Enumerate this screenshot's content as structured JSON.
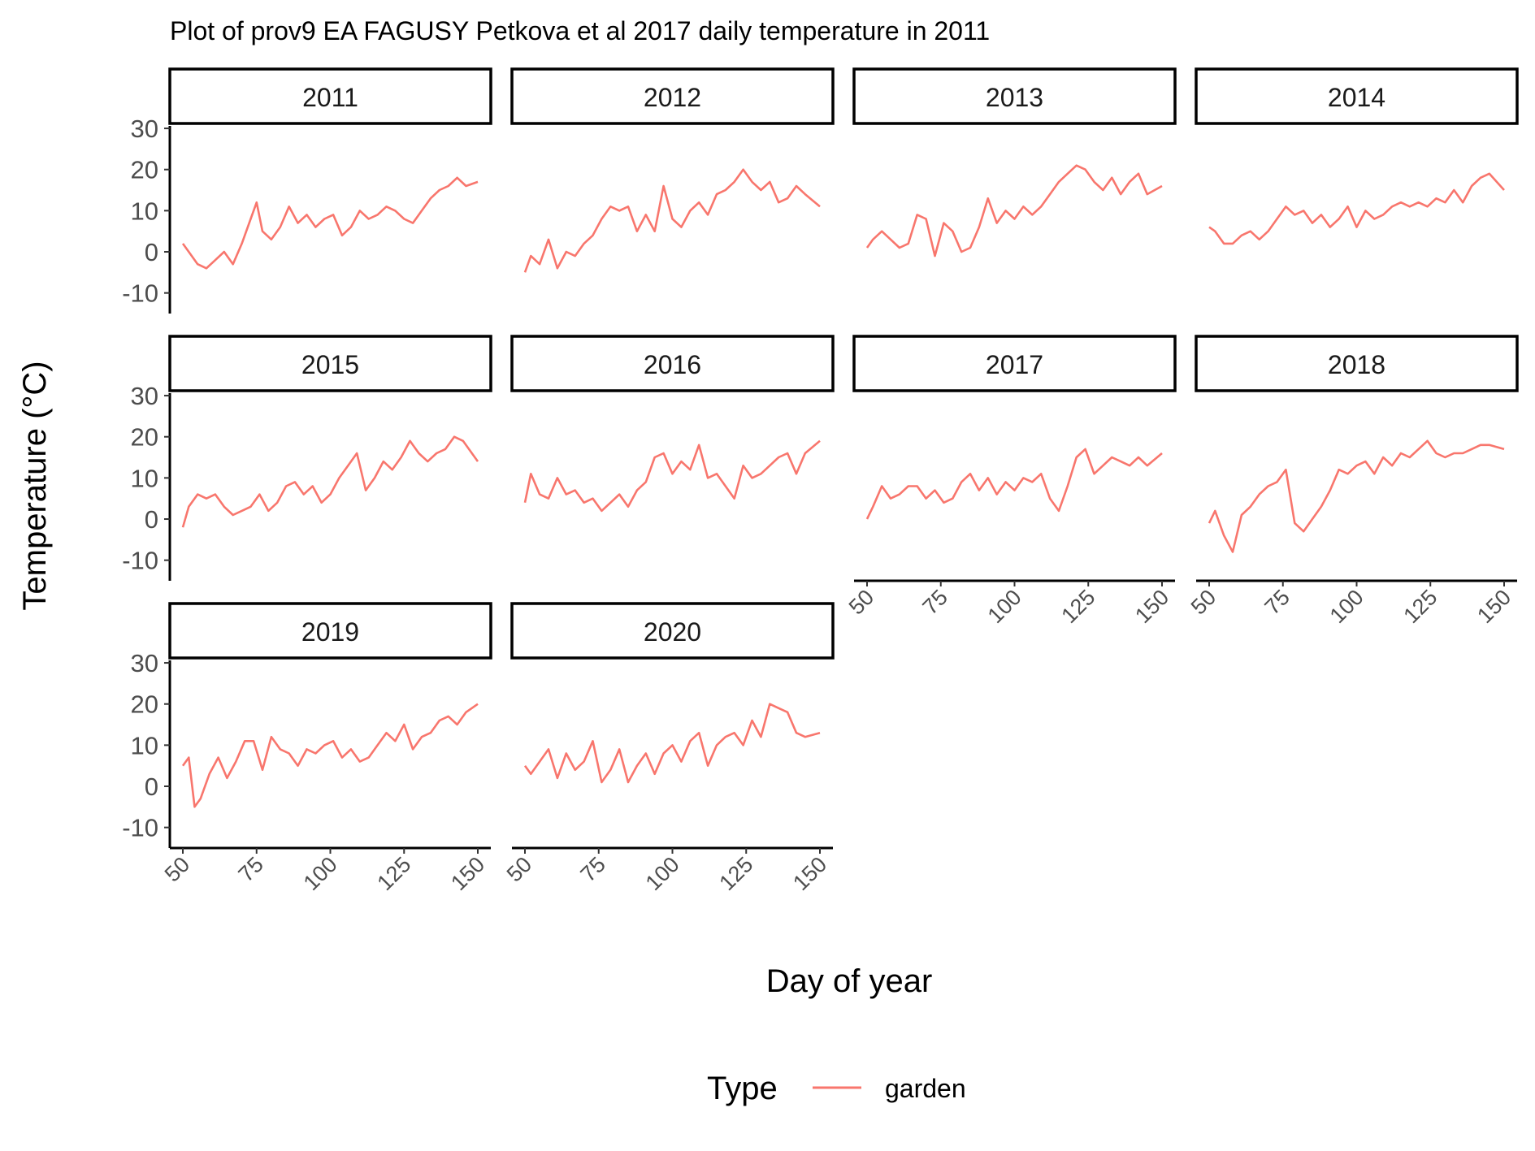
{
  "chart_data": {
    "type": "line",
    "title": "Plot of prov9 EA FAGUSY Petkova et al 2017 daily temperature in 2011",
    "xlabel": "Day of year",
    "ylabel": "Temperature (°C)",
    "xlim": [
      50,
      150
    ],
    "ylim": [
      -15,
      31
    ],
    "x_ticks": [
      "50",
      "75",
      "100",
      "125",
      "150"
    ],
    "y_ticks": [
      "30",
      "20",
      "10",
      "0",
      "-10"
    ],
    "line_color": "#F8766D",
    "legend": {
      "title": "Type",
      "entries": [
        "garden"
      ],
      "position": "bottom"
    },
    "grid": false,
    "panels": [
      {
        "label": "2011",
        "x": [
          50,
          52,
          55,
          58,
          61,
          64,
          67,
          70,
          73,
          75,
          77,
          80,
          83,
          86,
          89,
          92,
          95,
          98,
          101,
          104,
          107,
          110,
          113,
          116,
          119,
          122,
          125,
          128,
          131,
          134,
          137,
          140,
          143,
          146,
          150
        ],
        "y": [
          2,
          0,
          -3,
          -4,
          -2,
          0,
          -3,
          2,
          8,
          12,
          5,
          3,
          6,
          11,
          7,
          9,
          6,
          8,
          9,
          4,
          6,
          10,
          8,
          9,
          11,
          10,
          8,
          7,
          10,
          13,
          15,
          16,
          18,
          16,
          17
        ]
      },
      {
        "label": "2012",
        "x": [
          50,
          52,
          55,
          58,
          61,
          64,
          67,
          70,
          73,
          76,
          79,
          82,
          85,
          88,
          91,
          94,
          97,
          100,
          103,
          106,
          109,
          112,
          115,
          118,
          121,
          124,
          127,
          130,
          133,
          136,
          139,
          142,
          145,
          150
        ],
        "y": [
          -5,
          -1,
          -3,
          3,
          -4,
          0,
          -1,
          2,
          4,
          8,
          11,
          10,
          11,
          5,
          9,
          5,
          16,
          8,
          6,
          10,
          12,
          9,
          14,
          15,
          17,
          20,
          17,
          15,
          17,
          12,
          13,
          16,
          14,
          11
        ]
      },
      {
        "label": "2013",
        "x": [
          50,
          52,
          55,
          58,
          61,
          64,
          67,
          70,
          73,
          76,
          79,
          82,
          85,
          88,
          91,
          94,
          97,
          100,
          103,
          106,
          109,
          112,
          115,
          118,
          121,
          124,
          127,
          130,
          133,
          136,
          139,
          142,
          145,
          150
        ],
        "y": [
          1,
          3,
          5,
          3,
          1,
          2,
          9,
          8,
          -1,
          7,
          5,
          0,
          1,
          6,
          13,
          7,
          10,
          8,
          11,
          9,
          11,
          14,
          17,
          19,
          21,
          20,
          17,
          15,
          18,
          14,
          17,
          19,
          14,
          16
        ]
      },
      {
        "label": "2014",
        "x": [
          50,
          52,
          55,
          58,
          61,
          64,
          67,
          70,
          73,
          76,
          79,
          82,
          85,
          88,
          91,
          94,
          97,
          100,
          103,
          106,
          109,
          112,
          115,
          118,
          121,
          124,
          127,
          130,
          133,
          136,
          139,
          142,
          145,
          150
        ],
        "y": [
          6,
          5,
          2,
          2,
          4,
          5,
          3,
          5,
          8,
          11,
          9,
          10,
          7,
          9,
          6,
          8,
          11,
          6,
          10,
          8,
          9,
          11,
          12,
          11,
          12,
          11,
          13,
          12,
          15,
          12,
          16,
          18,
          19,
          15
        ]
      },
      {
        "label": "2015",
        "x": [
          50,
          52,
          55,
          58,
          61,
          64,
          67,
          70,
          73,
          76,
          79,
          82,
          85,
          88,
          91,
          94,
          97,
          100,
          103,
          106,
          109,
          112,
          115,
          118,
          121,
          124,
          127,
          130,
          133,
          136,
          139,
          142,
          145,
          150
        ],
        "y": [
          -2,
          3,
          6,
          5,
          6,
          3,
          1,
          2,
          3,
          6,
          2,
          4,
          8,
          9,
          6,
          8,
          4,
          6,
          10,
          13,
          16,
          7,
          10,
          14,
          12,
          15,
          19,
          16,
          14,
          16,
          17,
          20,
          19,
          14
        ]
      },
      {
        "label": "2016",
        "x": [
          50,
          52,
          55,
          58,
          61,
          64,
          67,
          70,
          73,
          76,
          79,
          82,
          85,
          88,
          91,
          94,
          97,
          100,
          103,
          106,
          109,
          112,
          115,
          118,
          121,
          124,
          127,
          130,
          133,
          136,
          139,
          142,
          145,
          150
        ],
        "y": [
          4,
          11,
          6,
          5,
          10,
          6,
          7,
          4,
          5,
          2,
          4,
          6,
          3,
          7,
          9,
          15,
          16,
          11,
          14,
          12,
          18,
          10,
          11,
          8,
          5,
          13,
          10,
          11,
          13,
          15,
          16,
          11,
          16,
          19
        ]
      },
      {
        "label": "2017",
        "x": [
          50,
          52,
          55,
          58,
          61,
          64,
          67,
          70,
          73,
          76,
          79,
          82,
          85,
          88,
          91,
          94,
          97,
          100,
          103,
          106,
          109,
          112,
          115,
          118,
          121,
          124,
          127,
          130,
          133,
          136,
          139,
          142,
          145,
          150
        ],
        "y": [
          0,
          3,
          8,
          5,
          6,
          8,
          8,
          5,
          7,
          4,
          5,
          9,
          11,
          7,
          10,
          6,
          9,
          7,
          10,
          9,
          11,
          5,
          2,
          8,
          15,
          17,
          11,
          13,
          15,
          14,
          13,
          15,
          13,
          16
        ]
      },
      {
        "label": "2018",
        "x": [
          50,
          52,
          55,
          58,
          61,
          64,
          67,
          70,
          73,
          76,
          79,
          82,
          85,
          88,
          91,
          94,
          97,
          100,
          103,
          106,
          109,
          112,
          115,
          118,
          121,
          124,
          127,
          130,
          133,
          136,
          139,
          142,
          145,
          150
        ],
        "y": [
          -1,
          2,
          -4,
          -8,
          1,
          3,
          6,
          8,
          9,
          12,
          -1,
          -3,
          0,
          3,
          7,
          12,
          11,
          13,
          14,
          11,
          15,
          13,
          16,
          15,
          17,
          19,
          16,
          15,
          16,
          16,
          17,
          18,
          18,
          17
        ]
      },
      {
        "label": "2019",
        "x": [
          50,
          52,
          54,
          56,
          59,
          62,
          65,
          68,
          71,
          74,
          77,
          80,
          83,
          86,
          89,
          92,
          95,
          98,
          101,
          104,
          107,
          110,
          113,
          116,
          119,
          122,
          125,
          128,
          131,
          134,
          137,
          140,
          143,
          146,
          150
        ],
        "y": [
          5,
          7,
          -5,
          -3,
          3,
          7,
          2,
          6,
          11,
          11,
          4,
          12,
          9,
          8,
          5,
          9,
          8,
          10,
          11,
          7,
          9,
          6,
          7,
          10,
          13,
          11,
          15,
          9,
          12,
          13,
          16,
          17,
          15,
          18,
          20
        ]
      },
      {
        "label": "2020",
        "x": [
          50,
          52,
          55,
          58,
          61,
          64,
          67,
          70,
          73,
          76,
          79,
          82,
          85,
          88,
          91,
          94,
          97,
          100,
          103,
          106,
          109,
          112,
          115,
          118,
          121,
          124,
          127,
          130,
          133,
          136,
          139,
          142,
          145,
          150
        ],
        "y": [
          5,
          3,
          6,
          9,
          2,
          8,
          4,
          6,
          11,
          1,
          4,
          9,
          1,
          5,
          8,
          3,
          8,
          10,
          6,
          11,
          13,
          5,
          10,
          12,
          13,
          10,
          16,
          12,
          20,
          19,
          18,
          13,
          12,
          13
        ]
      }
    ]
  }
}
